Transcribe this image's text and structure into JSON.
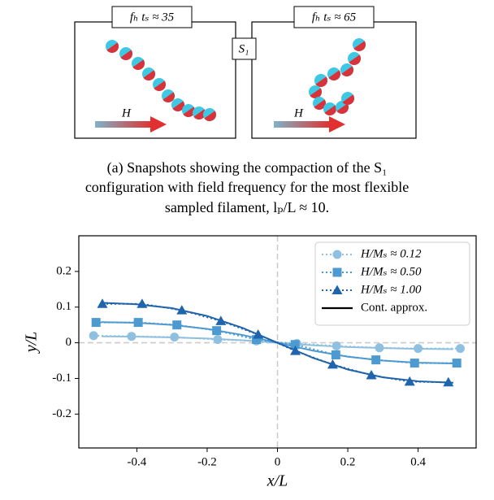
{
  "snapshots": [
    {
      "label": "fₕ tₛ ≈ 35",
      "field_label": "H"
    },
    {
      "label": "fₕ tₛ ≈ 65",
      "field_label": "H"
    }
  ],
  "config_label": "S₁",
  "caption": [
    "(a) Snapshots showing the compaction of the S₁",
    "configuration with field frequency for the most flexible",
    "sampled filament, lₚ/L ≈ 10."
  ],
  "chart_data": {
    "type": "line",
    "xlabel": "x/L",
    "ylabel": "y/L",
    "xlim": [
      -0.565,
      0.565
    ],
    "ylim": [
      -0.295,
      0.3
    ],
    "xticks": [
      -0.4,
      -0.2,
      0.0,
      0.2,
      0.4
    ],
    "yticks": [
      -0.2,
      -0.1,
      0.0,
      0.1,
      0.2
    ],
    "reference_lines": {
      "x": 0,
      "y": 0,
      "color": "#cccccc"
    },
    "legend": "upper right",
    "fit_label": "Cont. approx.",
    "fit_legend_color": "#000000",
    "series": [
      {
        "name": "H/Mₛ ≈ 0.12",
        "color": "#8fc0e0",
        "marker": "circle",
        "x": [
          -0.523,
          -0.415,
          -0.293,
          -0.17,
          -0.06,
          0.055,
          0.168,
          0.29,
          0.4,
          0.52
        ],
        "values": [
          0.02,
          0.018,
          0.016,
          0.009,
          0.005,
          -0.002,
          -0.009,
          -0.014,
          -0.016,
          -0.016
        ],
        "fit": {
          "x": [
            -0.5,
            -0.4,
            -0.3,
            -0.2,
            -0.1,
            0,
            0.1,
            0.2,
            0.3,
            0.4,
            0.5
          ],
          "values": [
            0.018,
            0.017,
            0.015,
            0.012,
            0.007,
            0,
            -0.007,
            -0.012,
            -0.015,
            -0.017,
            -0.018
          ]
        }
      },
      {
        "name": "H/Mₛ ≈ 0.50",
        "color": "#4d9ad0",
        "marker": "square",
        "x": [
          -0.516,
          -0.396,
          -0.286,
          -0.173,
          -0.06,
          0.05,
          0.166,
          0.28,
          0.39,
          0.51
        ],
        "values": [
          0.057,
          0.057,
          0.05,
          0.034,
          0.009,
          -0.005,
          -0.034,
          -0.048,
          -0.057,
          -0.057
        ],
        "fit": {
          "x": [
            -0.5,
            -0.4,
            -0.3,
            -0.2,
            -0.1,
            0,
            0.1,
            0.2,
            0.3,
            0.4,
            0.5
          ],
          "values": [
            0.058,
            0.056,
            0.05,
            0.039,
            0.022,
            0,
            -0.022,
            -0.039,
            -0.05,
            -0.056,
            -0.058
          ]
        }
      },
      {
        "name": "H/Mₛ ≈ 1.00",
        "color": "#1f64ad",
        "marker": "triangle",
        "x": [
          -0.498,
          -0.385,
          -0.272,
          -0.161,
          -0.055,
          0.051,
          0.157,
          0.267,
          0.376,
          0.486
        ],
        "values": [
          0.109,
          0.109,
          0.091,
          0.061,
          0.023,
          -0.023,
          -0.061,
          -0.091,
          -0.109,
          -0.111
        ],
        "fit": {
          "x": [
            -0.5,
            -0.4,
            -0.3,
            -0.2,
            -0.1,
            0,
            0.1,
            0.2,
            0.3,
            0.4,
            0.5
          ],
          "values": [
            0.112,
            0.108,
            0.097,
            0.075,
            0.042,
            0,
            -0.042,
            -0.075,
            -0.097,
            -0.108,
            -0.112
          ]
        }
      }
    ]
  }
}
